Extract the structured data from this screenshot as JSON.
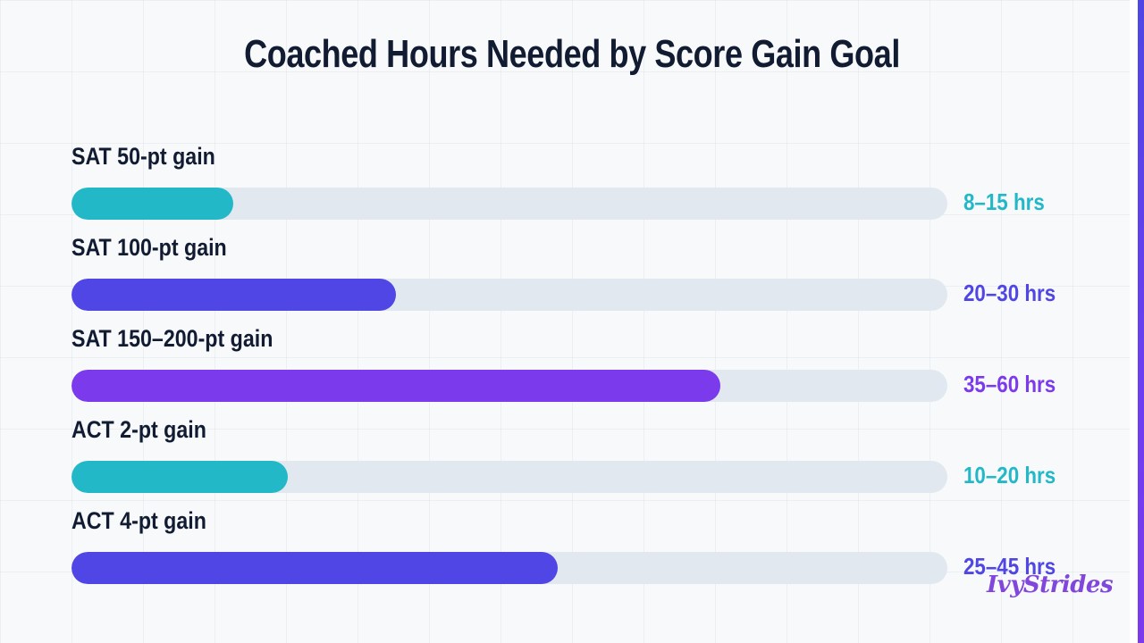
{
  "title": "Coached Hours Needed by Score Gain Goal",
  "logo": "IvyStrides",
  "colors": {
    "teal": "#22b8c8",
    "indigo": "#4f46e5",
    "violet": "#7c3aed",
    "track": "#e2e8f0",
    "text": "#111c33"
  },
  "chart_data": {
    "type": "bar",
    "orientation": "horizontal",
    "title": "Coached Hours Needed by Score Gain Goal",
    "xlabel": "",
    "ylabel": "",
    "grid": true,
    "legend": "none",
    "categories": [
      "SAT 50-pt gain",
      "SAT 100-pt gain",
      "SAT 150–200-pt gain",
      "ACT 2-pt gain",
      "ACT 4-pt gain"
    ],
    "rows": [
      {
        "label": "SAT 50-pt gain",
        "range_text": "8–15 hrs",
        "low": 8,
        "high": 15,
        "value": 15,
        "color": "#22b8c8"
      },
      {
        "label": "SAT 100-pt gain",
        "range_text": "20–30 hrs",
        "low": 20,
        "high": 30,
        "value": 30,
        "color": "#4f46e5"
      },
      {
        "label": "SAT 150–200-pt gain",
        "range_text": "35–60 hrs",
        "low": 35,
        "high": 60,
        "value": 60,
        "color": "#7c3aed"
      },
      {
        "label": "ACT 2-pt gain",
        "range_text": "10–20 hrs",
        "low": 10,
        "high": 20,
        "value": 20,
        "color": "#22b8c8"
      },
      {
        "label": "ACT 4-pt gain",
        "range_text": "25–45 hrs",
        "low": 25,
        "high": 45,
        "value": 45,
        "color": "#4f46e5"
      }
    ],
    "xlim": [
      0,
      81
    ]
  }
}
